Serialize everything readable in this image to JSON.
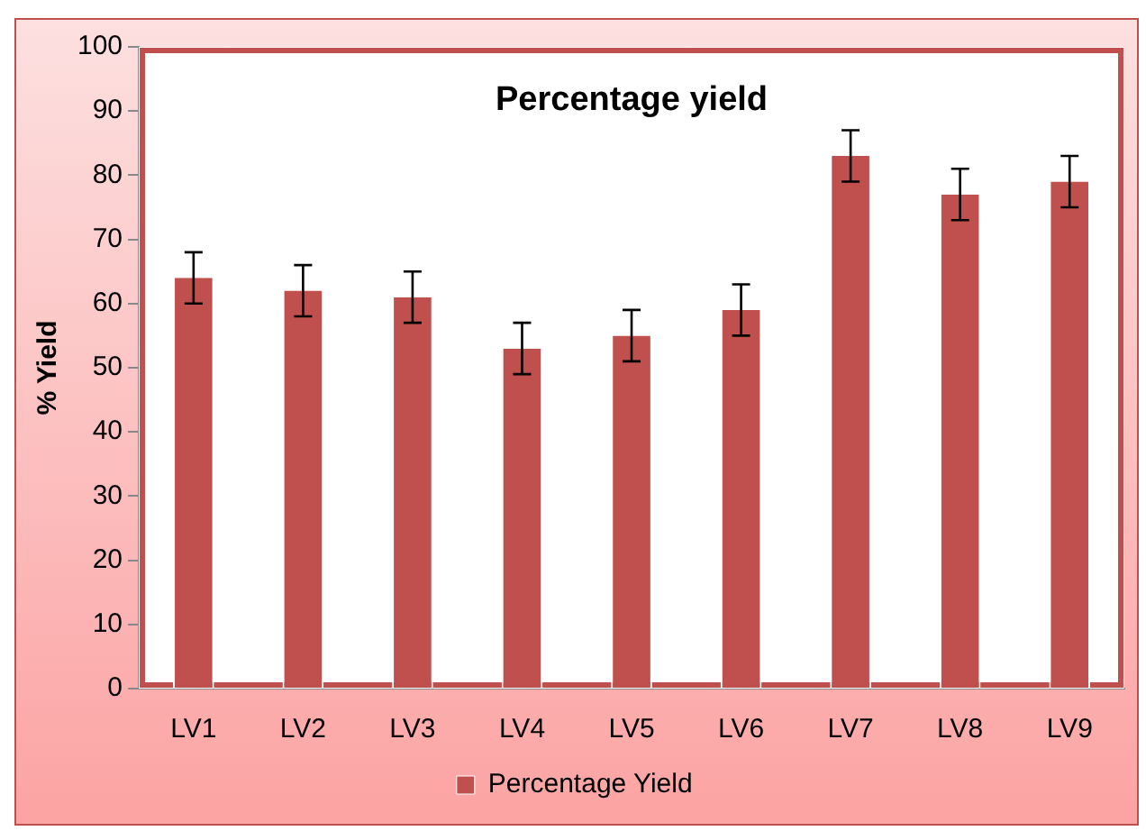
{
  "chart_data": {
    "type": "bar",
    "title": "Percentage yield",
    "ylabel": "% Yield",
    "categories": [
      "LV1",
      "LV2",
      "LV3",
      "LV4",
      "LV5",
      "LV6",
      "LV7",
      "LV8",
      "LV9"
    ],
    "series": [
      {
        "name": "Percentage Yield",
        "color": "#c0504d",
        "values": [
          64,
          62,
          61,
          53,
          55,
          59,
          83,
          77,
          79
        ],
        "errors": [
          4,
          4,
          4,
          4,
          4,
          4,
          4,
          4,
          4
        ]
      }
    ],
    "ylim": [
      0,
      100
    ],
    "yticks": [
      0,
      10,
      20,
      30,
      40,
      50,
      60,
      70,
      80,
      90,
      100
    ],
    "grid": false,
    "legend": "bottom"
  }
}
